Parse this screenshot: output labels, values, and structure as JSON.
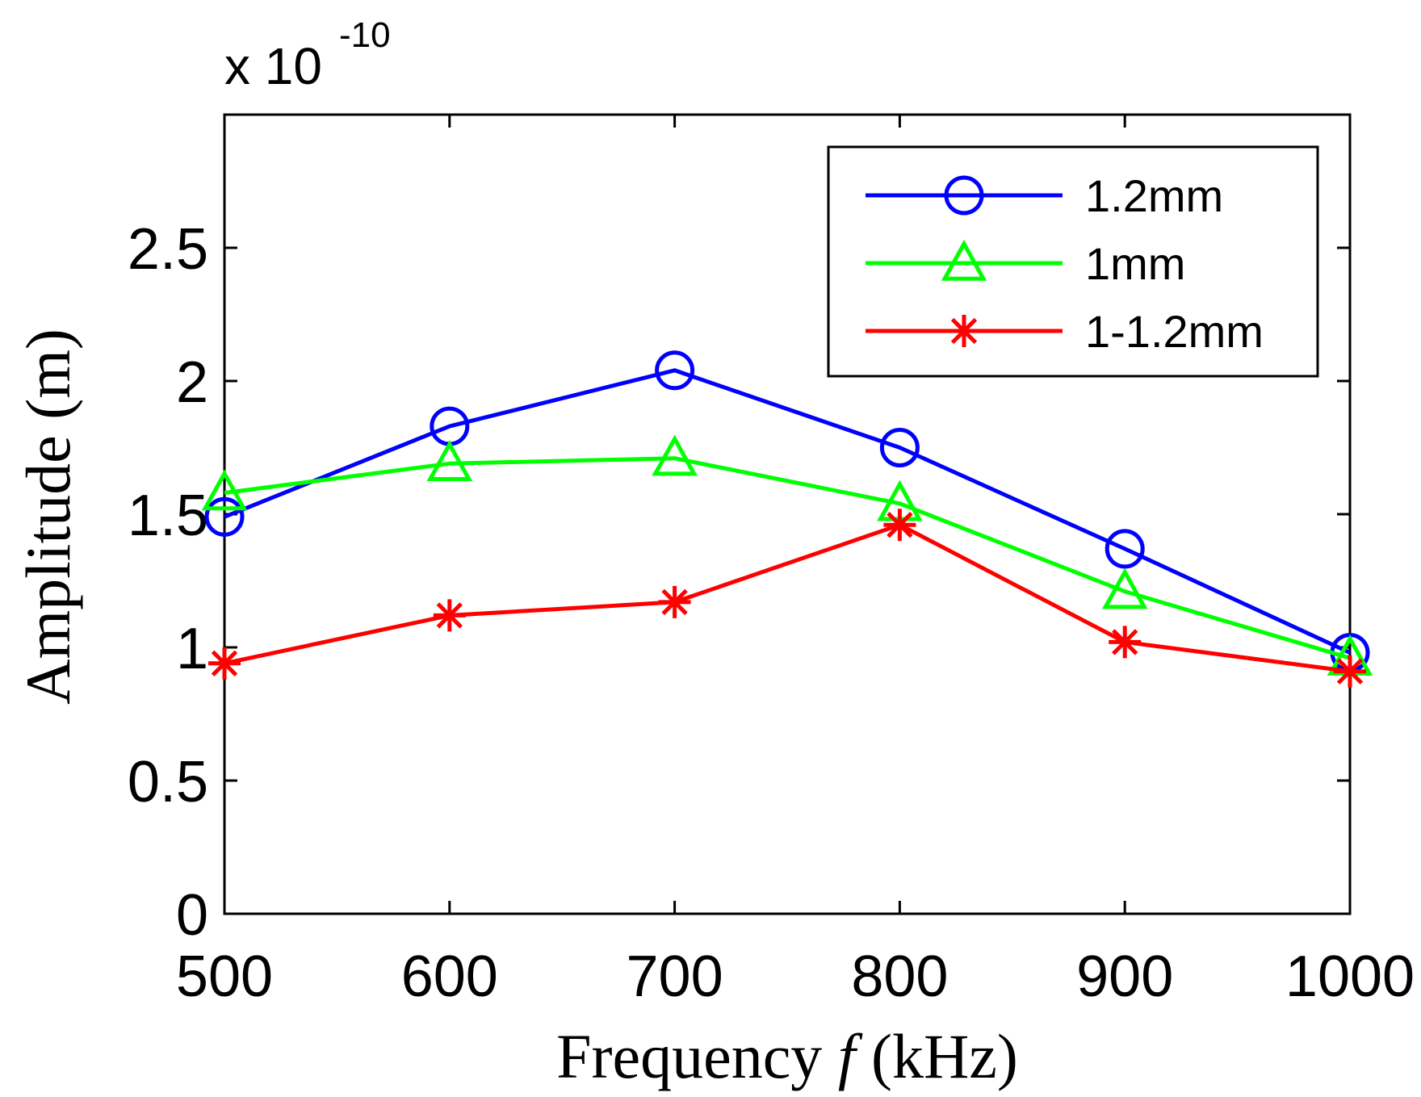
{
  "chart_data": {
    "type": "line",
    "title": "",
    "xlabel": "Frequency",
    "xlabel_symbol": "f",
    "xlabel_unit": "(kHz)",
    "ylabel": "Amplitude (m)",
    "y_multiplier_base": "x 10",
    "y_multiplier_exponent": "-10",
    "x": [
      500,
      600,
      700,
      800,
      900,
      1000
    ],
    "xlim": [
      500,
      1000
    ],
    "ylim": [
      0,
      3
    ],
    "xticks": [
      "500",
      "600",
      "700",
      "800",
      "900",
      "1000"
    ],
    "yticks": [
      "0",
      "0.5",
      "1",
      "1.5",
      "2",
      "2.5"
    ],
    "ytick_values": [
      0,
      0.5,
      1,
      1.5,
      2,
      2.5
    ],
    "grid": false,
    "legend_position": "top-right",
    "series": [
      {
        "name": "1.2mm",
        "color": "#0000ff",
        "marker": "circle",
        "values": [
          1.49,
          1.83,
          2.04,
          1.75,
          1.37,
          0.98
        ]
      },
      {
        "name": "1mm",
        "color": "#00ff00",
        "marker": "triangle",
        "values": [
          1.58,
          1.69,
          1.71,
          1.54,
          1.21,
          0.96
        ]
      },
      {
        "name": "1-1.2mm",
        "color": "#ff0000",
        "marker": "asterisk",
        "values": [
          0.94,
          1.12,
          1.17,
          1.46,
          1.02,
          0.91
        ]
      }
    ]
  }
}
